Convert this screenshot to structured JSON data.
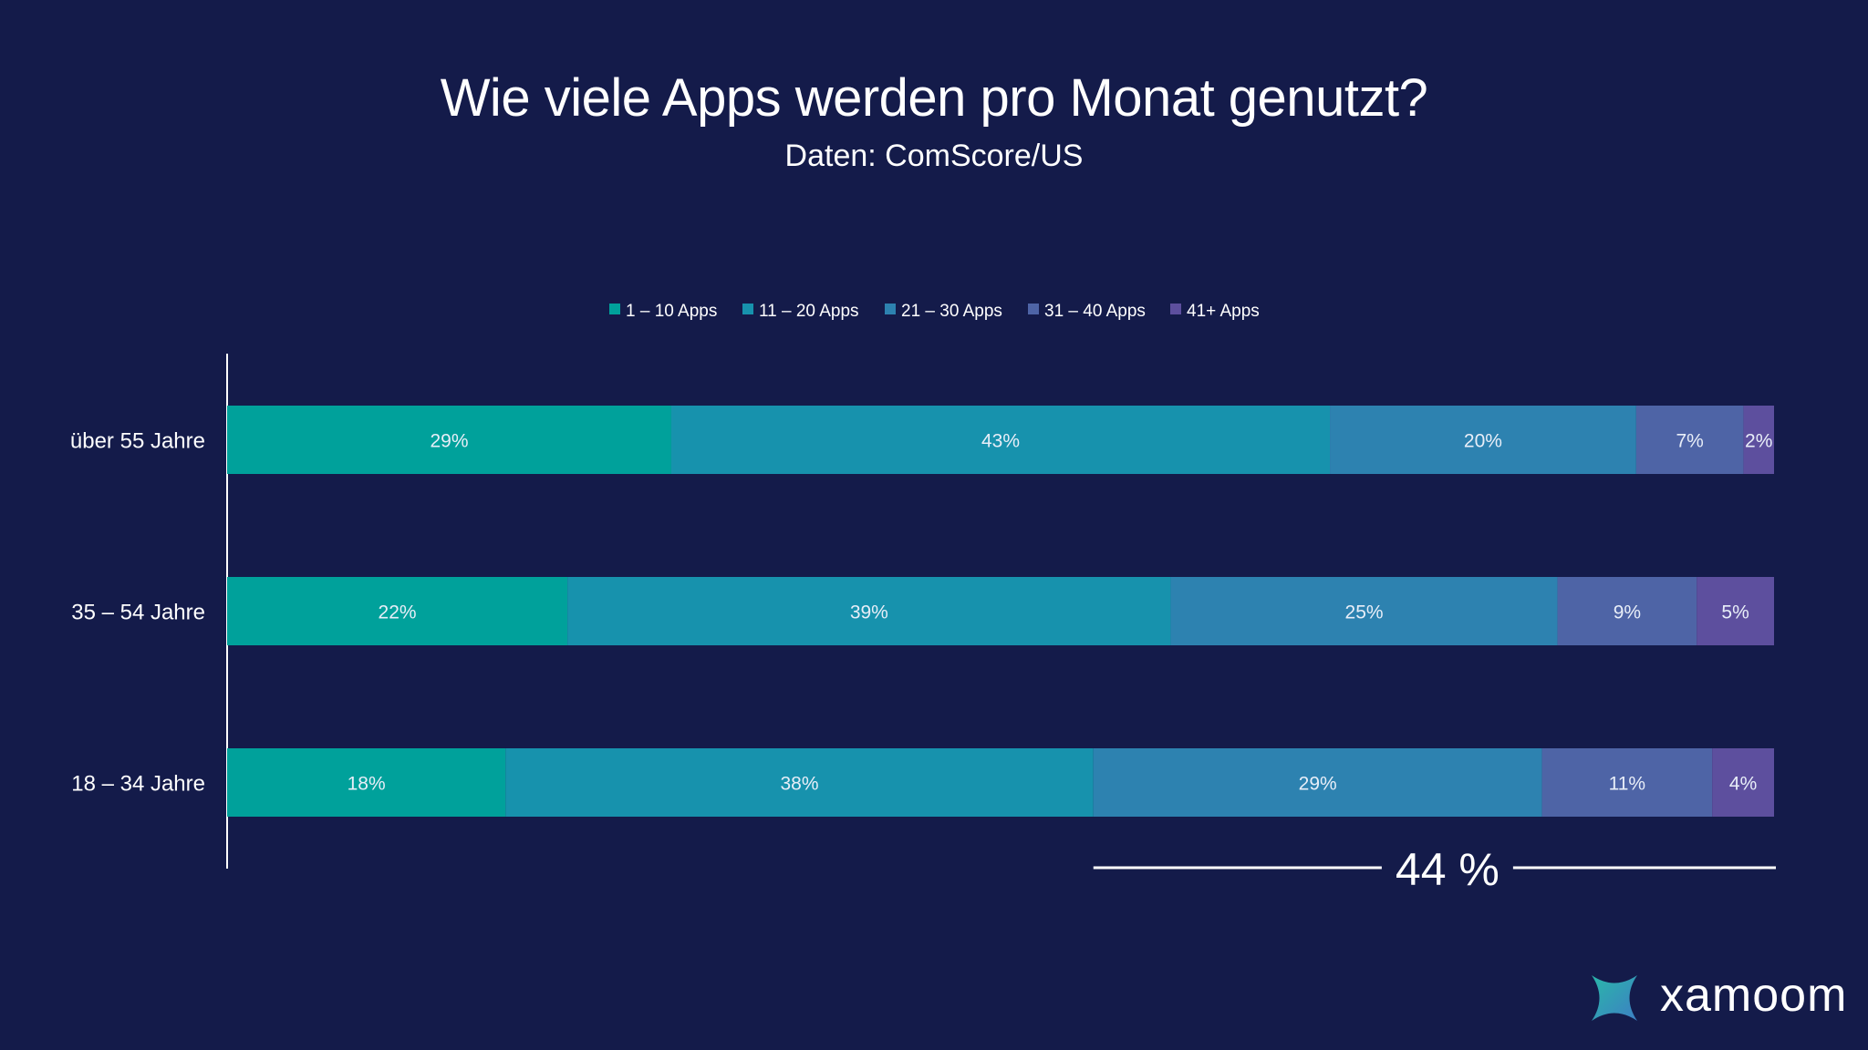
{
  "header": {
    "title": "Wie viele Apps werden pro Monat genutzt?",
    "subtitle": "Daten: ComScore/US"
  },
  "chart_data": {
    "type": "bar",
    "orientation": "horizontal",
    "stacked": true,
    "categories": [
      "über 55 Jahre",
      "35 – 54 Jahre",
      "18 – 34 Jahre"
    ],
    "series": [
      {
        "name": "1 – 10 Apps",
        "color": "#00a19b",
        "values": [
          29,
          22,
          18
        ],
        "labels": [
          "29%",
          "22%",
          "18%"
        ]
      },
      {
        "name": "11 – 20 Apps",
        "color": "#1792ad",
        "values": [
          43,
          39,
          38
        ],
        "labels": [
          "43%",
          "39%",
          "38%"
        ]
      },
      {
        "name": "21 – 30 Apps",
        "color": "#2d82b0",
        "values": [
          20,
          25,
          29
        ],
        "labels": [
          "20%",
          "25%",
          "29%"
        ]
      },
      {
        "name": "31 – 40 Apps",
        "color": "#4e64a6",
        "values": [
          7,
          9,
          11
        ],
        "labels": [
          "7%",
          "9%",
          "11%"
        ]
      },
      {
        "name": "41+ Apps",
        "color": "#5d4f9e",
        "values": [
          2,
          5,
          4
        ],
        "labels": [
          "2%",
          "5%",
          "4%"
        ]
      }
    ],
    "legend_position": "top-center",
    "grid": false,
    "annotation": {
      "text": "44 %",
      "from_segment": "21 – 30 Apps",
      "row": "18 – 34 Jahre"
    }
  },
  "brand": {
    "logo_text": "xamoom",
    "logo_icon": "xamoom-logo-icon"
  },
  "colors": {
    "background": "#141b4a",
    "text": "#ffffff"
  }
}
